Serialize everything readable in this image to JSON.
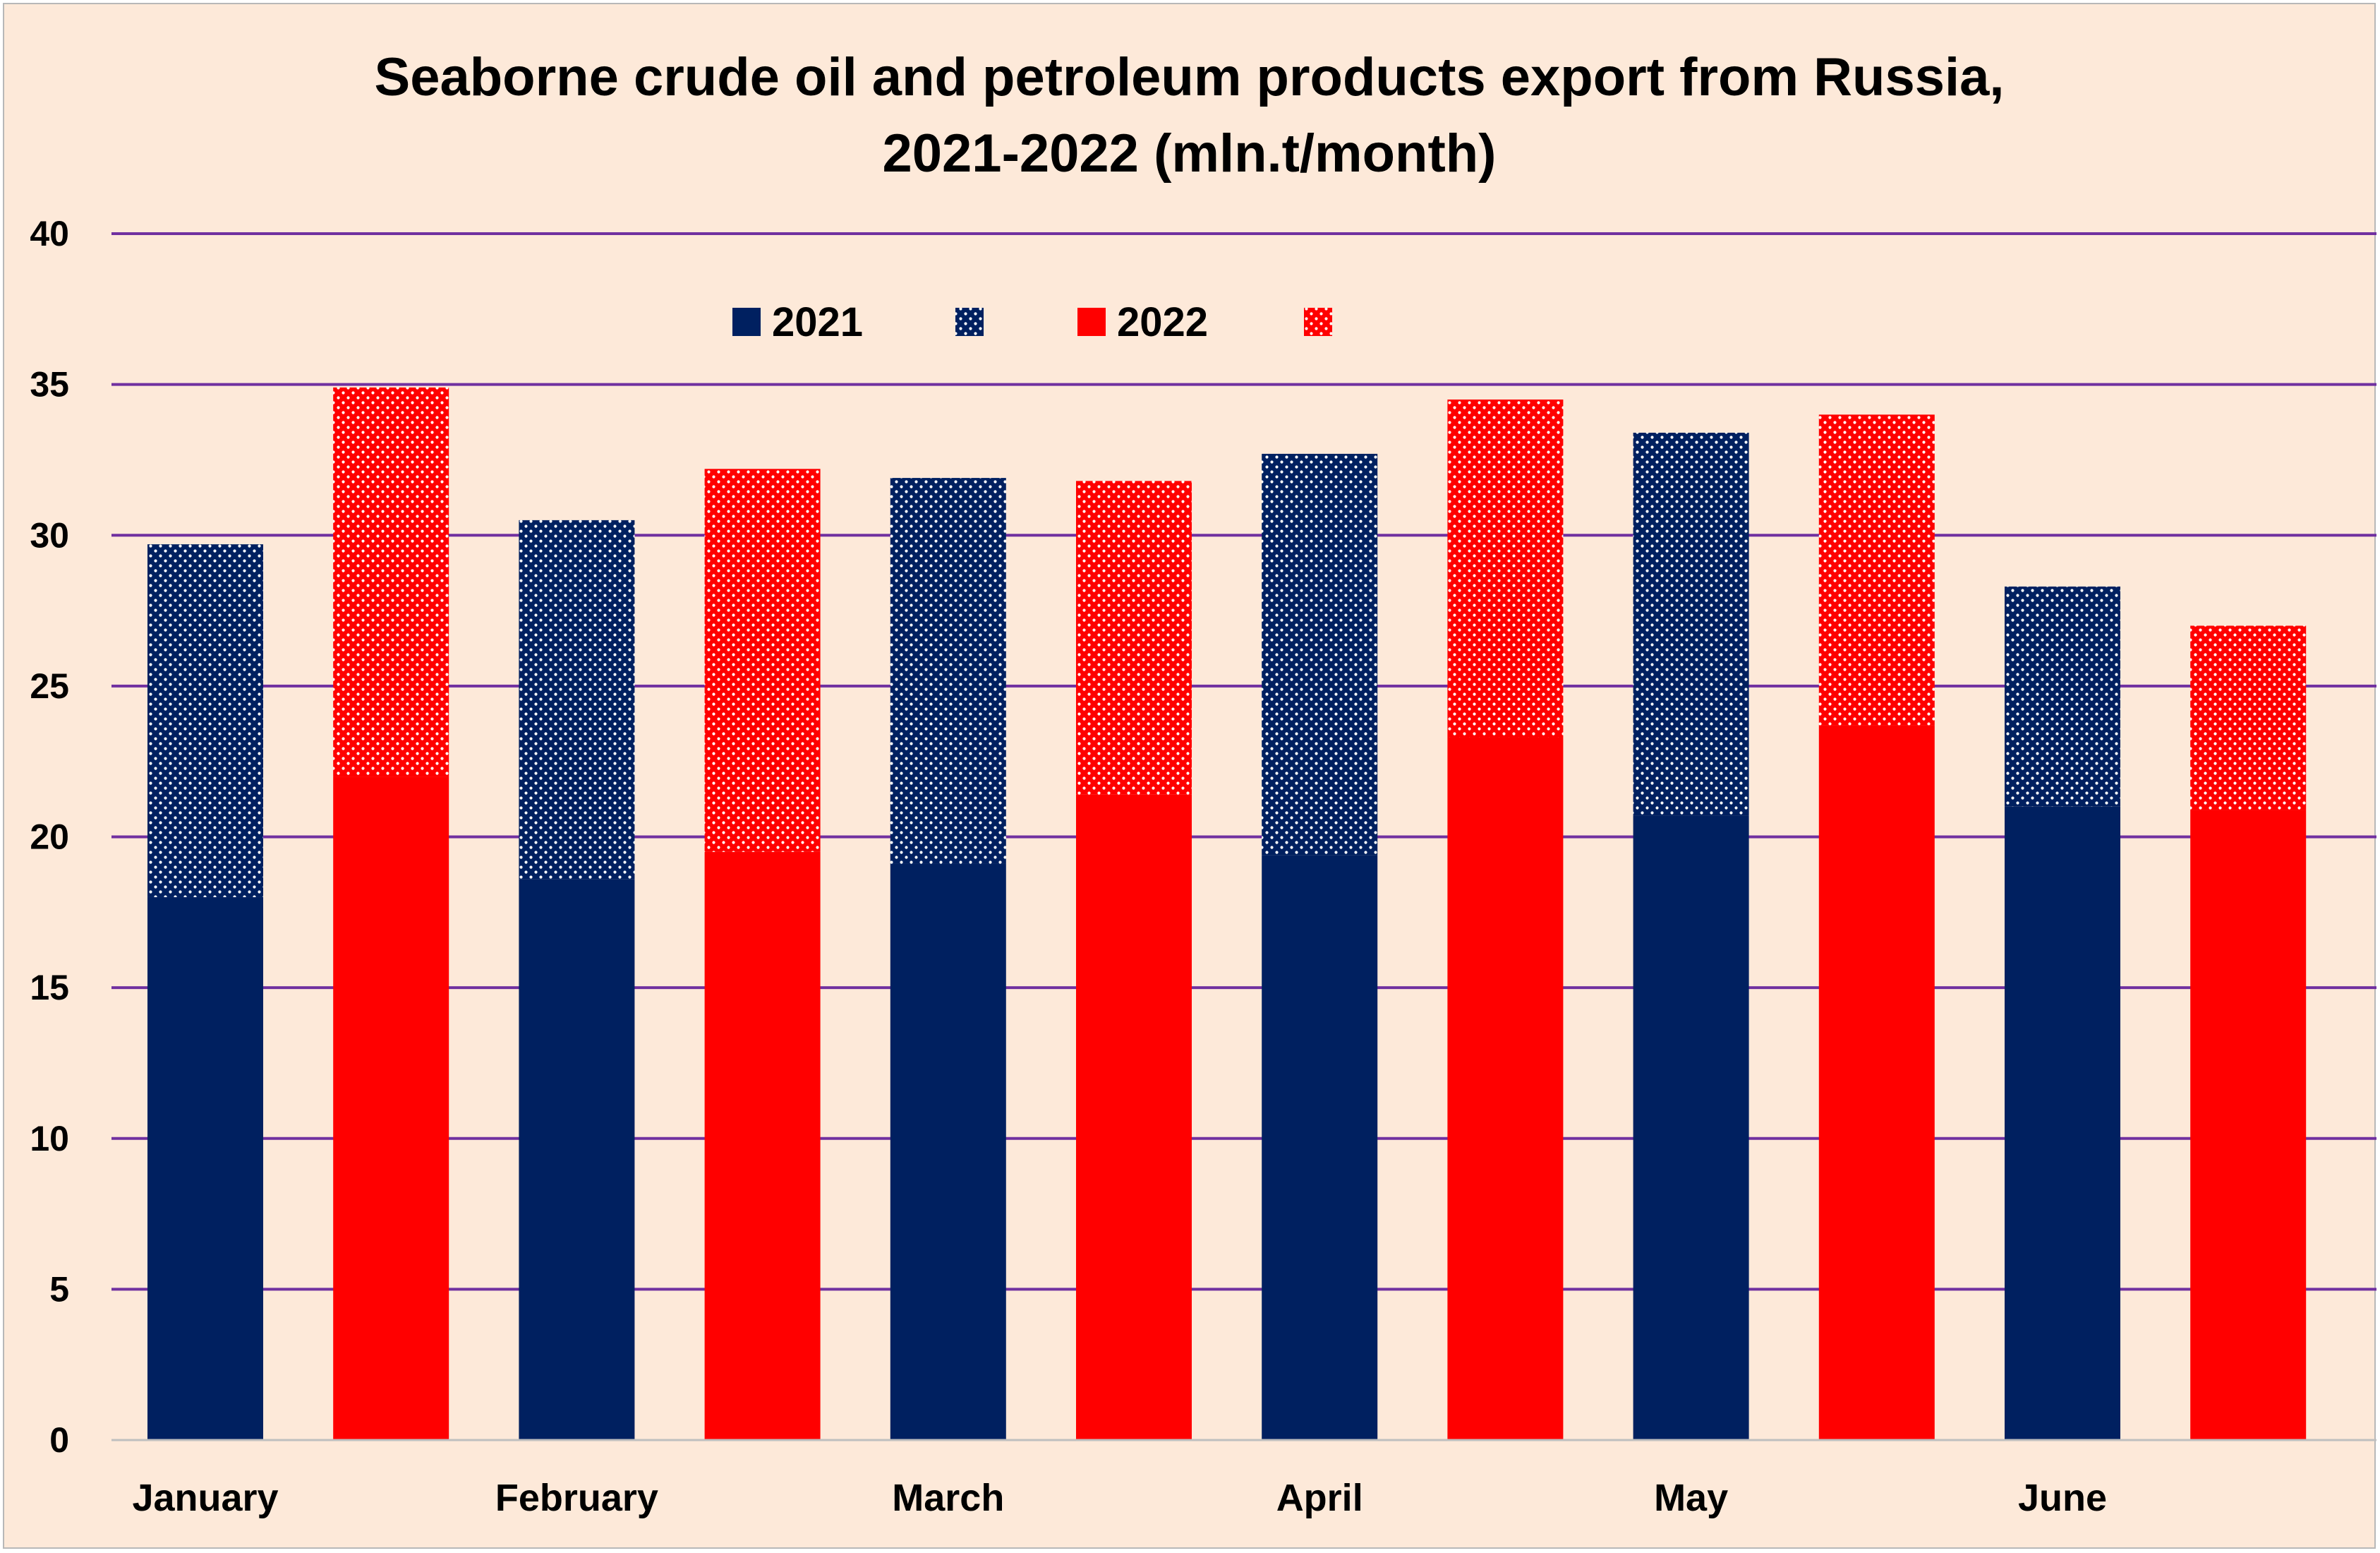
{
  "chart_data": {
    "type": "bar",
    "stacked": true,
    "title": "Seaborne crude oil and petroleum products export from Russia,",
    "subtitle": "2021-2022 (mln.t/month)",
    "xlabel": "",
    "ylabel": "",
    "ylim": [
      0,
      40
    ],
    "yticks": [
      "0",
      "5",
      "10",
      "15",
      "20",
      "25",
      "30",
      "35",
      "40"
    ],
    "grid": true,
    "legend_position": "top-center",
    "categories": [
      "January",
      "February",
      "March",
      "April",
      "May",
      "June"
    ],
    "legend": [
      {
        "label": "2021",
        "color": "#002060",
        "pattern": "solid"
      },
      {
        "label": "",
        "color": "#002060",
        "pattern": "dotted"
      },
      {
        "label": "2022",
        "color": "#ff0000",
        "pattern": "solid"
      },
      {
        "label": "",
        "color": "#ff0000",
        "pattern": "dotted"
      }
    ],
    "bars": [
      {
        "category": "January",
        "year": "2021",
        "solid": 18.0,
        "total": 29.7
      },
      {
        "category": "January",
        "year": "2022",
        "solid": 22.0,
        "total": 34.9
      },
      {
        "category": "February",
        "year": "2021",
        "solid": 18.6,
        "total": 30.5
      },
      {
        "category": "February",
        "year": "2022",
        "solid": 19.5,
        "total": 32.2
      },
      {
        "category": "March",
        "year": "2021",
        "solid": 19.1,
        "total": 31.9
      },
      {
        "category": "March",
        "year": "2022",
        "solid": 21.4,
        "total": 31.8
      },
      {
        "category": "April",
        "year": "2021",
        "solid": 19.4,
        "total": 32.7
      },
      {
        "category": "April",
        "year": "2022",
        "solid": 23.3,
        "total": 34.5
      },
      {
        "category": "May",
        "year": "2021",
        "solid": 20.7,
        "total": 33.4
      },
      {
        "category": "May",
        "year": "2022",
        "solid": 23.7,
        "total": 34.0
      },
      {
        "category": "June",
        "year": "2021",
        "solid": 21.0,
        "total": 28.3
      },
      {
        "category": "June",
        "year": "2022",
        "solid": 20.9,
        "total": 27.0
      }
    ],
    "colors": {
      "2021": "#002060",
      "2022": "#ff0000",
      "grid": "#7030a0",
      "background": "#fde9d9"
    }
  }
}
